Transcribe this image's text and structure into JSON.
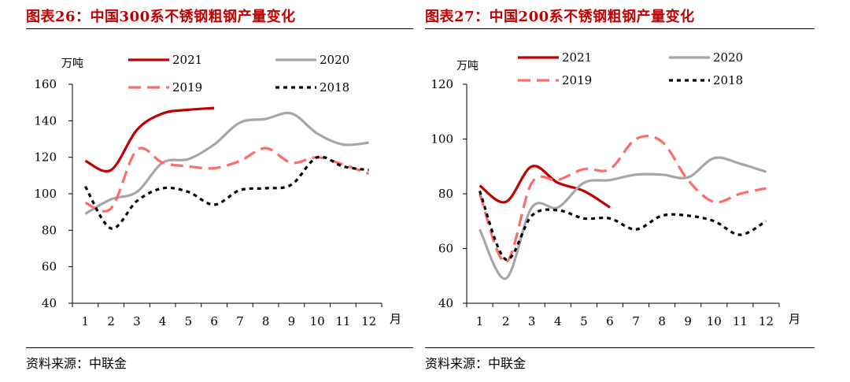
{
  "source_label": "资料来源：中联金",
  "chart_data": [
    {
      "type": "line",
      "title": "图表26：中国300系不锈钢粗钢产量变化",
      "ylabel": "万吨",
      "xunit": "月",
      "x": [
        1,
        2,
        3,
        4,
        5,
        6,
        7,
        8,
        9,
        10,
        11,
        12
      ],
      "ylim": [
        40,
        160
      ],
      "yticks": [
        40,
        60,
        80,
        100,
        120,
        140,
        160
      ],
      "legend_position": "top",
      "series": [
        {
          "name": "2021",
          "color": "#c00000",
          "dash": "",
          "values": [
            118,
            113,
            135,
            144,
            146,
            147,
            null,
            null,
            null,
            null,
            null,
            null
          ]
        },
        {
          "name": "2020",
          "color": "#a6a6a6",
          "dash": "",
          "values": [
            89,
            97,
            101,
            117,
            119,
            127,
            139,
            141,
            144,
            133,
            127,
            128
          ]
        },
        {
          "name": "2019",
          "color": "#ff6b6b",
          "dash": "16 8",
          "values": [
            95,
            92,
            124,
            117,
            115,
            114,
            118,
            125,
            117,
            120,
            116,
            111
          ]
        },
        {
          "name": "2018",
          "color": "#000000",
          "dash": "5 5",
          "values": [
            104,
            81,
            96,
            103,
            101,
            94,
            102,
            103,
            105,
            120,
            115,
            113
          ]
        }
      ]
    },
    {
      "type": "line",
      "title": "图表27：中国200系不锈钢粗钢产量变化",
      "ylabel": "万吨",
      "xunit": "月",
      "x": [
        1,
        2,
        3,
        4,
        5,
        6,
        7,
        8,
        9,
        10,
        11,
        12
      ],
      "ylim": [
        40,
        120
      ],
      "yticks": [
        40,
        60,
        80,
        100,
        120
      ],
      "legend_position": "top",
      "series": [
        {
          "name": "2021",
          "color": "#c00000",
          "dash": "",
          "values": [
            83,
            77,
            90,
            84,
            81,
            75,
            null,
            null,
            null,
            null,
            null,
            null
          ]
        },
        {
          "name": "2020",
          "color": "#a6a6a6",
          "dash": "",
          "values": [
            67,
            49,
            75,
            75,
            84,
            85,
            87,
            87,
            86,
            93,
            91,
            88
          ]
        },
        {
          "name": "2019",
          "color": "#ff6b6b",
          "dash": "16 8",
          "values": [
            80,
            55,
            84,
            85,
            89,
            89,
            100,
            99,
            85,
            77,
            80,
            82
          ]
        },
        {
          "name": "2018",
          "color": "#000000",
          "dash": "5 5",
          "values": [
            81,
            56,
            72,
            74,
            71,
            71,
            67,
            72,
            72,
            70,
            65,
            70
          ]
        }
      ]
    }
  ]
}
